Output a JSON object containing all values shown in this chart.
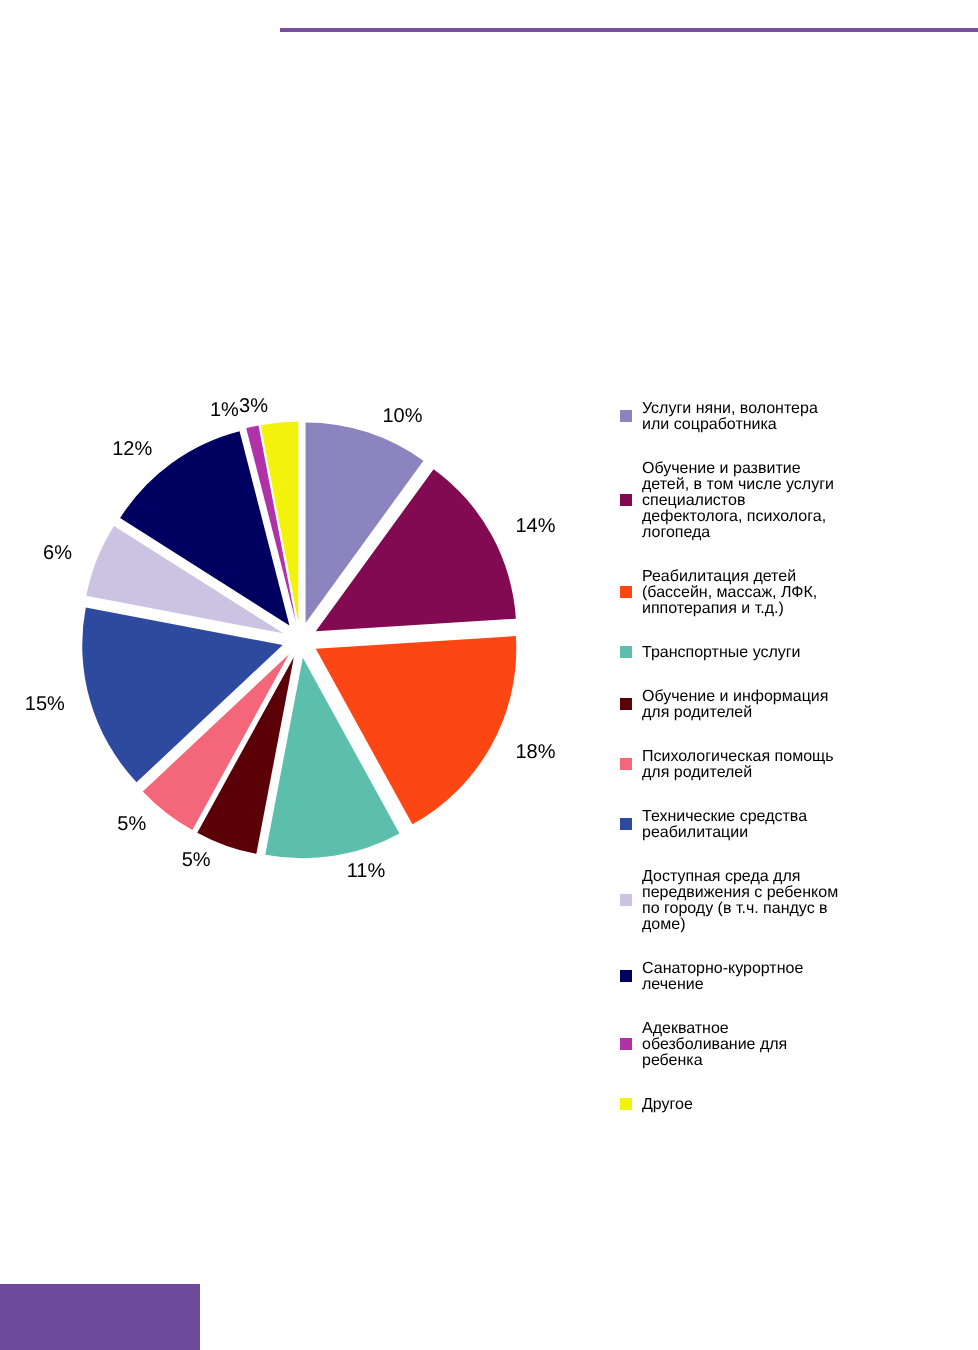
{
  "chart_data": {
    "type": "pie",
    "categories": [
      "Услуги няни, волонтера или соцработника",
      "Обучение и развитие детей, в том числе услуги специалистов дефектолога, психолога, логопеда",
      "Реабилитация детей (бассейн, массаж, ЛФК, иппотерапия и т.д.)",
      "Транспортные услуги",
      "Обучение и информация для родителей",
      "Психологическая помощь для родителей",
      "Технические средства реабилитации",
      "Доступная среда для передвижения с ребенком по городу (в т.ч. пандус в доме)",
      "Санаторно-курортное лечение",
      "Адекватное обезболивание для ребенка",
      "Другое"
    ],
    "values": [
      10,
      14,
      18,
      11,
      5,
      5,
      15,
      6,
      12,
      1,
      3
    ],
    "colors": [
      "#8b84be",
      "#820a52",
      "#fc4714",
      "#5cbfac",
      "#5c0008",
      "#f4667a",
      "#2e4a9f",
      "#ccc3e2",
      "#000060",
      "#b031a8",
      "#f2f20a"
    ],
    "value_labels": [
      "10%",
      "14%",
      "18%",
      "11%",
      "5%",
      "5%",
      "15%",
      "6%",
      "12%",
      "1%",
      "3%"
    ],
    "legend": "right"
  }
}
